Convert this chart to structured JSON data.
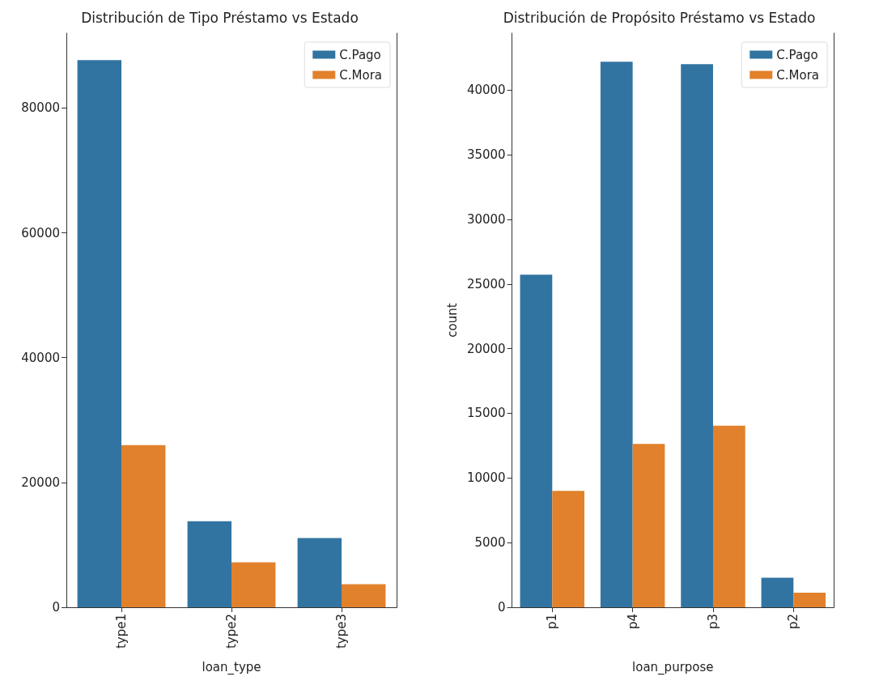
{
  "chart_data": [
    {
      "type": "bar",
      "title": "Distribución de Tipo Préstamo vs Estado",
      "xlabel": "loan_type",
      "categories": [
        "type1",
        "type2",
        "type3"
      ],
      "series": [
        {
          "name": "C.Pago",
          "color": "#3274a1",
          "values": [
            87700,
            13800,
            11100
          ]
        },
        {
          "name": "C.Mora",
          "color": "#e1812c",
          "values": [
            26000,
            7200,
            3700
          ]
        }
      ],
      "ylim": [
        0,
        92000
      ],
      "yticks": [
        0,
        20000,
        40000,
        60000,
        80000
      ],
      "grid": false,
      "legend": "top right"
    },
    {
      "type": "bar",
      "title": "Distribución de Propósito Préstamo vs Estado",
      "xlabel": "loan_purpose",
      "ylabel": "count",
      "categories": [
        "p1",
        "p4",
        "p3",
        "p2"
      ],
      "series": [
        {
          "name": "C.Pago",
          "color": "#3274a1",
          "values": [
            25730,
            42200,
            42000,
            2280
          ]
        },
        {
          "name": "C.Mora",
          "color": "#e1812c",
          "values": [
            9000,
            12640,
            14050,
            1120
          ]
        }
      ],
      "ylim": [
        0,
        44400
      ],
      "yticks": [
        0,
        5000,
        10000,
        15000,
        20000,
        25000,
        30000,
        35000,
        40000
      ],
      "grid": false,
      "legend": "top right"
    }
  ]
}
